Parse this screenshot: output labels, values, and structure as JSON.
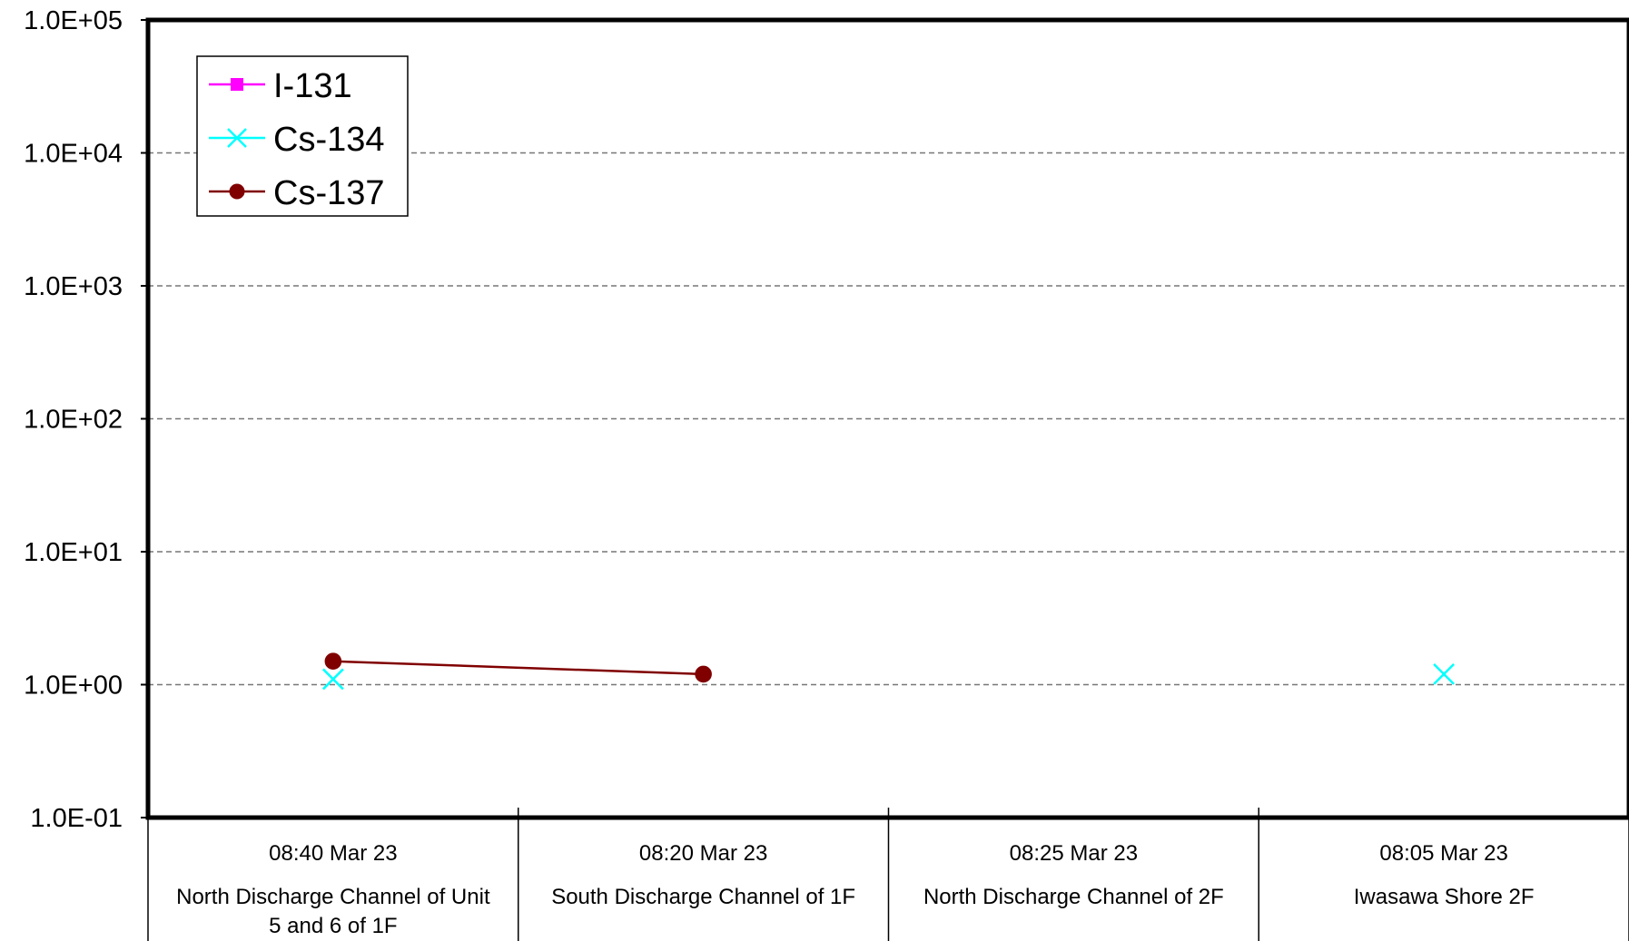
{
  "chart_data": {
    "type": "line",
    "scale_y": "log",
    "ylim": [
      0.1,
      100000
    ],
    "yticks": [
      "1.0E-01",
      "1.0E+00",
      "1.0E+01",
      "1.0E+02",
      "1.0E+03",
      "1.0E+04",
      "1.0E+05"
    ],
    "grid": "horizontal dashed",
    "legend_position": "top-left",
    "categories": [
      {
        "time": "08:40 Mar 23",
        "location": [
          "North Discharge Channel of Unit",
          "5 and 6 of 1F"
        ]
      },
      {
        "time": "08:20 Mar 23",
        "location": [
          "South Discharge Channel of 1F"
        ]
      },
      {
        "time": "08:25 Mar 23",
        "location": [
          "North Discharge Channel of 2F"
        ]
      },
      {
        "time": "08:05 Mar 23",
        "location": [
          "Iwasawa Shore 2F"
        ]
      }
    ],
    "series": [
      {
        "name": "I-131",
        "color": "#ff00ff",
        "marker": "square",
        "values": [
          null,
          null,
          null,
          null
        ]
      },
      {
        "name": "Cs-134",
        "color": "#00ffff",
        "marker": "x",
        "values": [
          1.1,
          null,
          null,
          1.2
        ]
      },
      {
        "name": "Cs-137",
        "color": "#800000",
        "marker": "circle",
        "values": [
          1.5,
          1.2,
          null,
          null
        ]
      }
    ]
  }
}
